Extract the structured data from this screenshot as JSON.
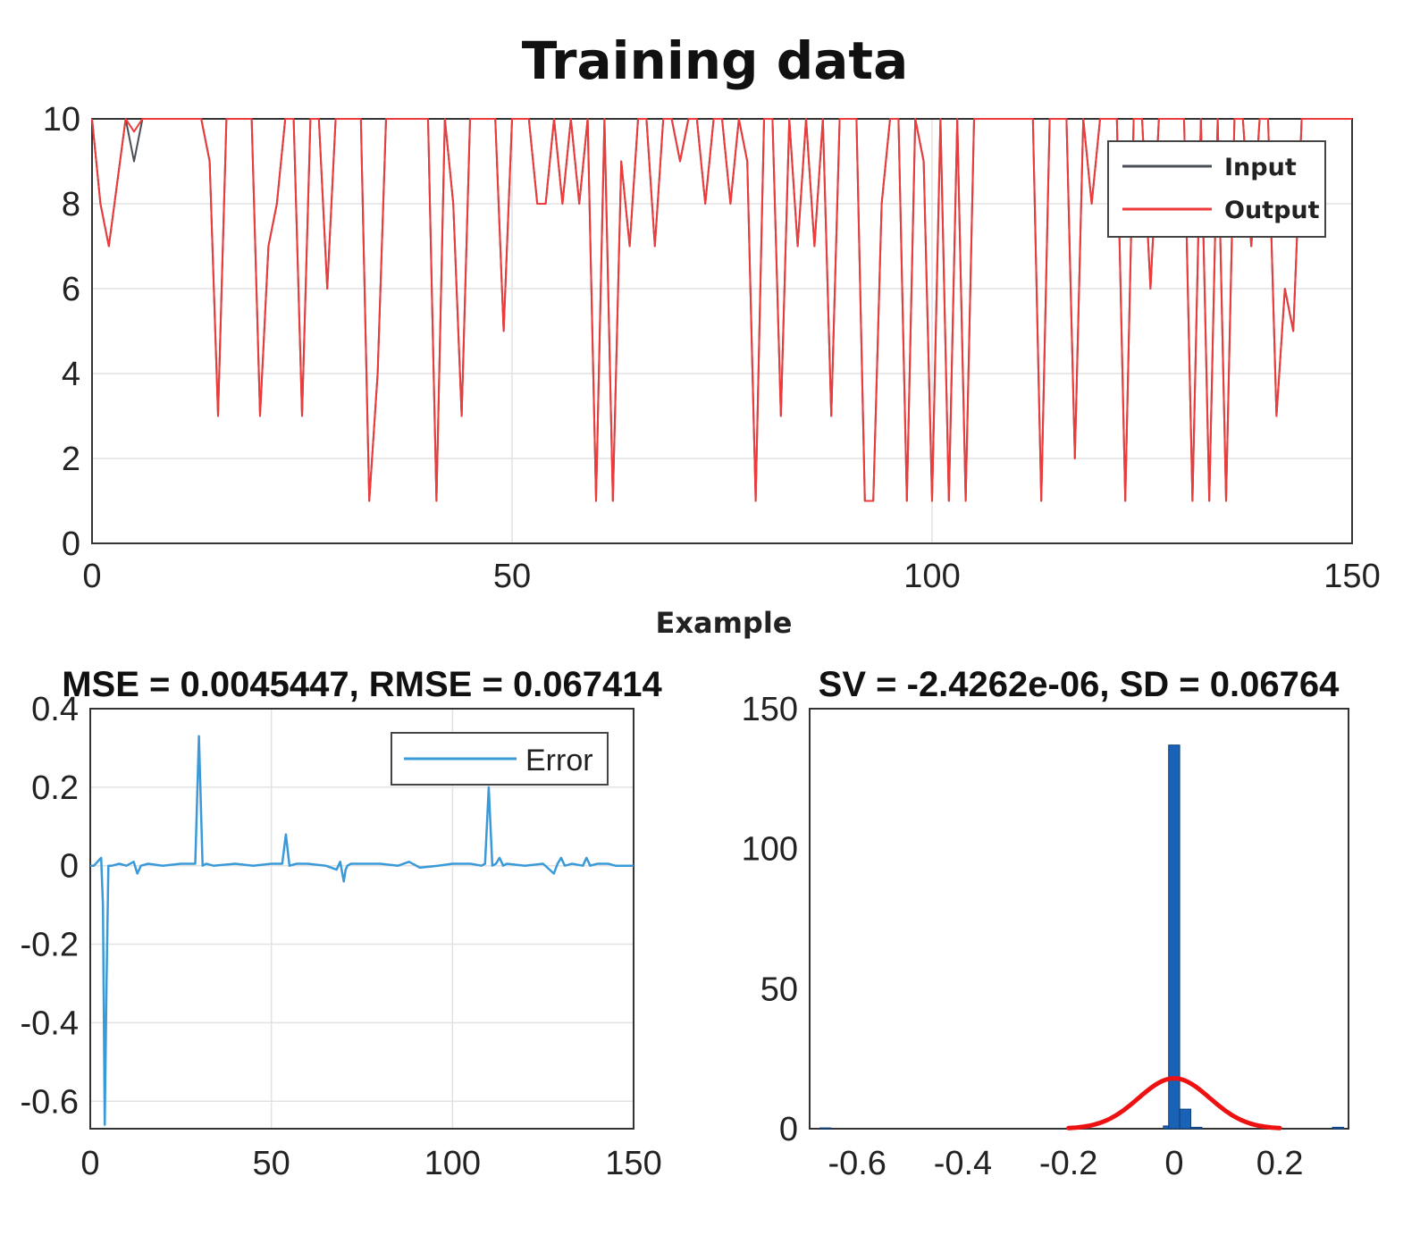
{
  "figure_title": "Training data",
  "chart_data": [
    {
      "type": "line",
      "title": "Training data",
      "xlabel": "Example",
      "ylabel": "",
      "xlim": [
        0,
        150
      ],
      "ylim": [
        0,
        10
      ],
      "xticks": [
        "0",
        "50",
        "100",
        "150"
      ],
      "yticks": [
        "0",
        "2",
        "4",
        "6",
        "8",
        "10"
      ],
      "grid": true,
      "legend_position": "top-right",
      "colors": {
        "input": "#4a4f57",
        "output": "#ee3a3a"
      },
      "series": [
        {
          "name": "Input",
          "x": [
            0,
            1,
            2,
            3,
            4,
            5,
            6,
            7,
            8,
            9,
            10,
            11,
            12,
            13,
            14,
            15,
            16,
            17,
            18,
            19,
            20,
            21,
            22,
            23,
            24,
            25,
            26,
            27,
            28,
            29,
            30,
            31,
            32,
            33,
            34,
            35,
            36,
            37,
            38,
            39,
            40,
            41,
            42,
            43,
            44,
            45,
            46,
            47,
            48,
            49,
            50,
            51,
            52,
            53,
            54,
            55,
            56,
            57,
            58,
            59,
            60,
            61,
            62,
            63,
            64,
            65,
            66,
            67,
            68,
            69,
            70,
            71,
            72,
            73,
            74,
            75,
            76,
            77,
            78,
            79,
            80,
            81,
            82,
            83,
            84,
            85,
            86,
            87,
            88,
            89,
            90,
            91,
            92,
            93,
            94,
            95,
            96,
            97,
            98,
            99,
            100,
            101,
            102,
            103,
            104,
            105,
            106,
            107,
            108,
            109,
            110,
            111,
            112,
            113,
            114,
            115,
            116,
            117,
            118,
            119,
            120,
            121,
            122,
            123,
            124,
            125,
            126,
            127,
            128,
            129,
            130,
            131,
            132,
            133,
            134,
            135,
            136,
            137,
            138,
            139,
            140,
            141,
            142,
            143,
            144,
            145,
            146,
            147,
            148,
            149,
            150
          ],
          "y": [
            10,
            8,
            7,
            8.5,
            10,
            9,
            10,
            10,
            10,
            10,
            10,
            10,
            10,
            10,
            9,
            3,
            10,
            10,
            10,
            10,
            3,
            7,
            8,
            10,
            10,
            3,
            10,
            10,
            6,
            10,
            10,
            10,
            10,
            1,
            4,
            10,
            10,
            10,
            10,
            10,
            10,
            1,
            10,
            8,
            3,
            10,
            10,
            10,
            10,
            5,
            10,
            10,
            10,
            8,
            8,
            10,
            8,
            10,
            8,
            10,
            1,
            10,
            1,
            9,
            7,
            10,
            10,
            7,
            10,
            10,
            9,
            10,
            10,
            8,
            10,
            10,
            8,
            10,
            9,
            1,
            10,
            10,
            3,
            10,
            7,
            10,
            7,
            10,
            3,
            10,
            10,
            10,
            1,
            1,
            8,
            10,
            10,
            1,
            10,
            9,
            1,
            10,
            1,
            10,
            1,
            10,
            10,
            10,
            10,
            10,
            10,
            10,
            10,
            1,
            10,
            10,
            10,
            2,
            10,
            8,
            10,
            10,
            10,
            1,
            10,
            10,
            6,
            10,
            10,
            10,
            10,
            1,
            10,
            1,
            10,
            1,
            10,
            10,
            7,
            10,
            10,
            3,
            6,
            5,
            10,
            10,
            10,
            10,
            10,
            10,
            10
          ]
        },
        {
          "name": "Output",
          "x": [
            0,
            1,
            2,
            3,
            4,
            5,
            6,
            7,
            8,
            9,
            10,
            11,
            12,
            13,
            14,
            15,
            16,
            17,
            18,
            19,
            20,
            21,
            22,
            23,
            24,
            25,
            26,
            27,
            28,
            29,
            30,
            31,
            32,
            33,
            34,
            35,
            36,
            37,
            38,
            39,
            40,
            41,
            42,
            43,
            44,
            45,
            46,
            47,
            48,
            49,
            50,
            51,
            52,
            53,
            54,
            55,
            56,
            57,
            58,
            59,
            60,
            61,
            62,
            63,
            64,
            65,
            66,
            67,
            68,
            69,
            70,
            71,
            72,
            73,
            74,
            75,
            76,
            77,
            78,
            79,
            80,
            81,
            82,
            83,
            84,
            85,
            86,
            87,
            88,
            89,
            90,
            91,
            92,
            93,
            94,
            95,
            96,
            97,
            98,
            99,
            100,
            101,
            102,
            103,
            104,
            105,
            106,
            107,
            108,
            109,
            110,
            111,
            112,
            113,
            114,
            115,
            116,
            117,
            118,
            119,
            120,
            121,
            122,
            123,
            124,
            125,
            126,
            127,
            128,
            129,
            130,
            131,
            132,
            133,
            134,
            135,
            136,
            137,
            138,
            139,
            140,
            141,
            142,
            143,
            144,
            145,
            146,
            147,
            148,
            149,
            150
          ],
          "y": [
            10,
            8,
            7,
            8.5,
            10,
            9.7,
            10,
            10,
            10,
            10,
            10,
            10,
            10,
            10,
            9,
            3,
            10,
            10,
            10,
            10,
            3,
            7,
            8,
            10,
            10,
            3,
            10,
            10,
            6,
            10,
            10,
            10,
            10,
            1,
            4,
            10,
            10,
            10,
            10,
            10,
            10,
            1,
            10,
            8,
            3,
            10,
            10,
            10,
            10,
            5,
            10,
            10,
            10,
            8,
            8,
            10,
            8,
            10,
            8,
            10,
            1,
            10,
            1,
            9,
            7,
            10,
            10,
            7,
            10,
            10,
            9,
            10,
            10,
            8,
            10,
            10,
            8,
            10,
            9,
            1,
            10,
            10,
            3,
            10,
            7,
            10,
            7,
            10,
            3,
            10,
            10,
            10,
            1,
            1,
            8,
            10,
            10,
            1,
            10,
            9,
            1,
            10,
            1,
            10,
            1,
            10,
            10,
            10,
            10,
            10,
            10,
            10,
            10,
            1,
            10,
            10,
            10,
            2,
            10,
            8,
            10,
            10,
            10,
            1,
            10,
            10,
            6,
            10,
            10,
            10,
            10,
            1,
            10,
            1,
            10,
            1,
            10,
            10,
            7,
            10,
            10,
            3,
            6,
            5,
            10,
            10,
            10,
            10,
            10,
            10,
            10
          ]
        }
      ]
    },
    {
      "type": "line",
      "title": "MSE = 0.0045447, RMSE = 0.067414",
      "xlabel": "",
      "ylabel": "",
      "xlim": [
        0,
        150
      ],
      "ylim": [
        -0.67,
        0.4
      ],
      "xticks": [
        "0",
        "50",
        "100",
        "150"
      ],
      "yticks": [
        "0.4",
        "0.2",
        "0",
        "-0.2",
        "-0.4",
        "-0.6"
      ],
      "grid": true,
      "legend_position": "top-right",
      "colors": {
        "error": "#3a9ad9"
      },
      "series": [
        {
          "name": "Error",
          "x": [
            0,
            1,
            2,
            3,
            3.5,
            4,
            4.5,
            5,
            6,
            8,
            10,
            12,
            13,
            14,
            16,
            20,
            25,
            29,
            30,
            31,
            32,
            34,
            40,
            45,
            50,
            53,
            54,
            55,
            57,
            60,
            65,
            68,
            69,
            70,
            70.5,
            71,
            72,
            75,
            80,
            85,
            88,
            91,
            96,
            100,
            105,
            108,
            109,
            110,
            111,
            112,
            113,
            114,
            115,
            120,
            125,
            128,
            129,
            130,
            131,
            133,
            136,
            137,
            138,
            140,
            143,
            145,
            147,
            150
          ],
          "y": [
            0,
            0,
            0.01,
            0.02,
            -0.1,
            -0.66,
            -0.3,
            0,
            0,
            0.005,
            0,
            0.01,
            -0.02,
            0,
            0.005,
            0,
            0.005,
            0.005,
            0.33,
            0,
            0.005,
            0,
            0.005,
            0,
            0.005,
            0.005,
            0.08,
            0,
            0.005,
            0.005,
            0,
            -0.01,
            0.01,
            -0.04,
            -0.01,
            0,
            0.005,
            0.005,
            0.005,
            0,
            0.01,
            -0.005,
            0,
            0.005,
            0.005,
            0,
            0.005,
            0.2,
            0,
            0.005,
            0.02,
            0,
            0.005,
            0,
            0.005,
            -0.02,
            0.005,
            0.02,
            0,
            0.005,
            0,
            0.02,
            0,
            0.005,
            0.005,
            0,
            0,
            0
          ]
        }
      ]
    },
    {
      "type": "bar",
      "title": "SV = -2.4262e-06, SD = 0.06764",
      "xlabel": "",
      "ylabel": "",
      "xlim": [
        -0.69,
        0.33
      ],
      "ylim": [
        0,
        150
      ],
      "xticks": [
        "-0.6",
        "-0.4",
        "-0.2",
        "0",
        "0.2"
      ],
      "yticks": [
        "150",
        "100",
        "50",
        "0"
      ],
      "grid": false,
      "colors": {
        "bars": "#1a62b5",
        "fit": "#ee1111"
      },
      "bin_width": 0.021,
      "bins": [
        {
          "x": -0.66,
          "count": 0.3
        },
        {
          "x": -0.01,
          "count": 1
        },
        {
          "x": 0.0,
          "count": 137
        },
        {
          "x": 0.021,
          "count": 7
        },
        {
          "x": 0.042,
          "count": 0.5
        },
        {
          "x": 0.31,
          "count": 0.5
        }
      ],
      "fit_curve": {
        "mean": 0,
        "sd": 0.06764,
        "peak": 18,
        "range": [
          -0.2,
          0.2
        ]
      }
    }
  ]
}
